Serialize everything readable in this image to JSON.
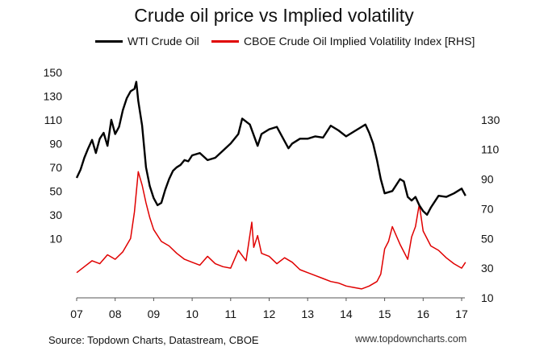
{
  "chart_data": {
    "type": "line",
    "title": "Crude oil price vs Implied volatility",
    "source": "Source: Topdown Charts, Datastream, CBOE",
    "site": "www.topdowncharts.com",
    "x_tick_labels": [
      "07",
      "08",
      "09",
      "10",
      "11",
      "12",
      "13",
      "14",
      "15",
      "16",
      "17"
    ],
    "left_axis": {
      "ticks": [
        10,
        30,
        50,
        70,
        90,
        110,
        130,
        150
      ],
      "ylim": [
        -40,
        160
      ]
    },
    "right_axis": {
      "ticks": [
        10,
        30,
        50,
        70,
        90,
        110,
        130
      ],
      "ylim": [
        10,
        170
      ]
    },
    "colors": {
      "wti": "#000000",
      "ovx": "#e00000"
    },
    "grid": false,
    "legend_position": "top",
    "series": [
      {
        "name": "WTI Crude Oil",
        "axis": "left",
        "x": [
          2007.0,
          2007.1,
          2007.2,
          2007.3,
          2007.4,
          2007.5,
          2007.6,
          2007.7,
          2007.8,
          2007.9,
          2008.0,
          2008.1,
          2008.2,
          2008.3,
          2008.4,
          2008.5,
          2008.55,
          2008.6,
          2008.7,
          2008.8,
          2008.9,
          2009.0,
          2009.1,
          2009.2,
          2009.3,
          2009.4,
          2009.5,
          2009.6,
          2009.7,
          2009.8,
          2009.9,
          2010.0,
          2010.2,
          2010.4,
          2010.6,
          2010.8,
          2011.0,
          2011.2,
          2011.3,
          2011.5,
          2011.7,
          2011.8,
          2012.0,
          2012.2,
          2012.4,
          2012.5,
          2012.6,
          2012.8,
          2013.0,
          2013.2,
          2013.4,
          2013.6,
          2013.8,
          2014.0,
          2014.2,
          2014.4,
          2014.5,
          2014.6,
          2014.7,
          2014.8,
          2014.9,
          2015.0,
          2015.2,
          2015.4,
          2015.5,
          2015.6,
          2015.7,
          2015.8,
          2015.9,
          2016.0,
          2016.1,
          2016.2,
          2016.4,
          2016.6,
          2016.8,
          2017.0,
          2017.1
        ],
        "values": [
          61,
          68,
          78,
          86,
          93,
          82,
          94,
          99,
          88,
          110,
          98,
          104,
          118,
          128,
          134,
          136,
          142,
          126,
          105,
          70,
          54,
          44,
          38,
          40,
          51,
          60,
          67,
          70,
          72,
          76,
          75,
          80,
          82,
          76,
          78,
          84,
          90,
          98,
          111,
          106,
          88,
          98,
          102,
          104,
          92,
          86,
          90,
          94,
          94,
          96,
          95,
          105,
          101,
          96,
          100,
          104,
          106,
          99,
          90,
          76,
          60,
          48,
          50,
          60,
          58,
          45,
          42,
          45,
          38,
          33,
          30,
          36,
          46,
          45,
          48,
          52,
          46
        ]
      },
      {
        "name": "CBOE Crude Oil Implied Volatility Index [RHS]",
        "axis": "right",
        "x": [
          2007.0,
          2007.2,
          2007.4,
          2007.6,
          2007.8,
          2008.0,
          2008.2,
          2008.4,
          2008.5,
          2008.6,
          2008.7,
          2008.8,
          2008.9,
          2009.0,
          2009.2,
          2009.4,
          2009.6,
          2009.8,
          2010.0,
          2010.2,
          2010.4,
          2010.6,
          2010.8,
          2011.0,
          2011.2,
          2011.4,
          2011.55,
          2011.6,
          2011.7,
          2011.8,
          2012.0,
          2012.2,
          2012.4,
          2012.6,
          2012.8,
          2013.0,
          2013.2,
          2013.4,
          2013.6,
          2013.8,
          2014.0,
          2014.2,
          2014.4,
          2014.6,
          2014.8,
          2014.9,
          2015.0,
          2015.1,
          2015.2,
          2015.4,
          2015.6,
          2015.7,
          2015.8,
          2015.9,
          2016.0,
          2016.2,
          2016.4,
          2016.6,
          2016.8,
          2017.0,
          2017.1
        ],
        "values": [
          27,
          31,
          35,
          33,
          39,
          36,
          41,
          50,
          68,
          95,
          86,
          74,
          64,
          56,
          48,
          45,
          40,
          36,
          34,
          32,
          38,
          33,
          31,
          30,
          42,
          35,
          61,
          44,
          52,
          40,
          38,
          33,
          37,
          34,
          29,
          27,
          25,
          23,
          21,
          20,
          18,
          17,
          16,
          18,
          21,
          26,
          43,
          48,
          58,
          46,
          36,
          51,
          58,
          73,
          55,
          45,
          42,
          37,
          33,
          30,
          34
        ]
      }
    ]
  }
}
